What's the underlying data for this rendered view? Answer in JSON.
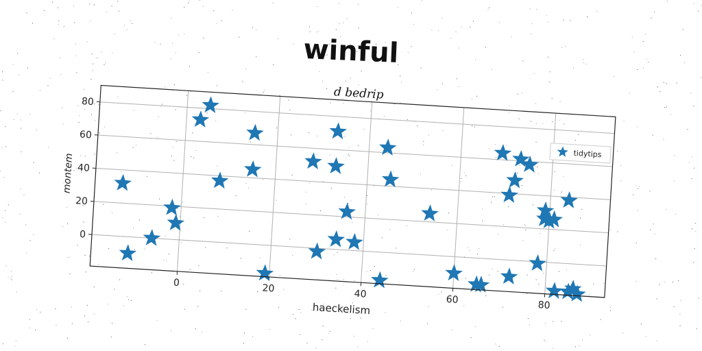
{
  "title": "winful",
  "chart_data": {
    "type": "scatter",
    "title": "d bedrip",
    "xlabel": "haeckelism",
    "ylabel": "montem",
    "xlim": [
      -19,
      93
    ],
    "ylim": [
      -19,
      90
    ],
    "xticks": [
      0,
      20,
      40,
      60,
      80
    ],
    "yticks": [
      0,
      20,
      40,
      60,
      80
    ],
    "grid": true,
    "legend": "top-right",
    "marker": "star",
    "color": "#1f77b4",
    "series": [
      {
        "name": "tidytips",
        "x": [
          -13,
          -11,
          -6,
          -2,
          -1,
          3,
          5,
          8,
          15,
          15,
          19,
          28,
          30,
          33,
          33,
          34,
          36,
          38,
          44,
          44,
          45,
          54,
          60,
          65,
          66,
          69,
          71,
          72,
          72,
          73,
          75,
          78,
          79,
          79,
          80,
          81,
          82,
          84,
          85,
          86,
          87
        ],
        "y": [
          32,
          -10,
          0,
          19,
          10,
          73,
          82,
          37,
          67,
          45,
          -17,
          52,
          -2,
          50,
          71,
          6,
          23,
          5,
          63,
          -17,
          44,
          25,
          -10,
          -16,
          -16,
          64,
          39,
          -10,
          48,
          61,
          58,
          -1,
          26,
          31,
          25,
          26,
          -17,
          38,
          -17,
          -15,
          -18
        ]
      }
    ]
  }
}
